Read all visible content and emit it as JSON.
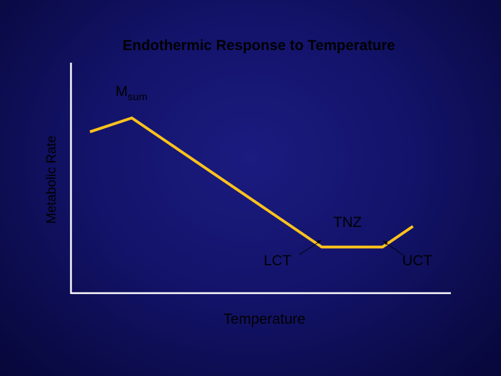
{
  "chart_data": {
    "type": "line",
    "title": "Endothermic Response to Temperature",
    "xlabel": "Temperature",
    "ylabel": "Metabolic Rate",
    "axis_ticks": "none",
    "series": [
      {
        "color": "#ffc31c",
        "points": [
          {
            "x": 0.05,
            "y": 0.7
          },
          {
            "x": 0.16,
            "y": 0.76
          },
          {
            "x": 0.66,
            "y": 0.2
          },
          {
            "x": 0.82,
            "y": 0.2
          },
          {
            "x": 0.9,
            "y": 0.29
          }
        ]
      }
    ],
    "annotations": {
      "msum": {
        "main": "M",
        "sub": "sum"
      },
      "tnz": "TNZ",
      "lct": "LCT",
      "uct": "UCT"
    },
    "grid": false,
    "legend": "none"
  },
  "colors": {
    "line": "#ffc31c",
    "axis": "#ffffff",
    "text": "#000000"
  }
}
